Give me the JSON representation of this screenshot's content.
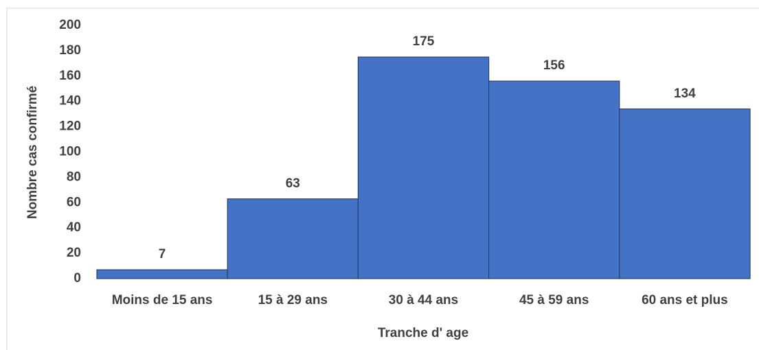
{
  "chart_data": {
    "type": "bar",
    "x_label": "Tranche d' age",
    "y_label": "Nombre cas confirmé",
    "categories": [
      "Moins de 15 ans",
      "15 à 29 ans",
      "30 à 44 ans",
      "45 à 59 ans",
      "60 ans et plus"
    ],
    "values": [
      7,
      63,
      175,
      156,
      134
    ],
    "color": "#4472c4",
    "ylim": [
      0,
      200
    ],
    "yticks": [
      0,
      20,
      40,
      60,
      80,
      100,
      120,
      140,
      160,
      180,
      200
    ],
    "grid": false
  }
}
